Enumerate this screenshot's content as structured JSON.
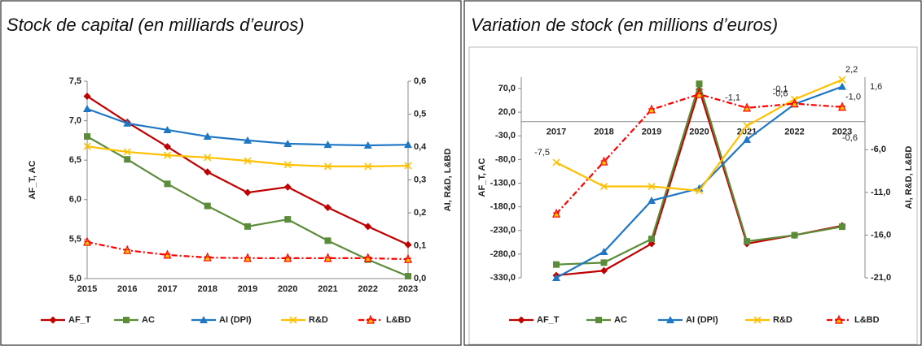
{
  "chart_data": [
    {
      "type": "line",
      "title": "Stock de capital (en milliards d’euros)",
      "y_label": "AF_T, AC",
      "y2_label": "AI, R&D, L&BD",
      "categories": [
        "2015",
        "2016",
        "2017",
        "2018",
        "2019",
        "2020",
        "2021",
        "2022",
        "2023"
      ],
      "ylim": [
        5,
        7.5
      ],
      "yticks": [
        {
          "value": 5,
          "label": "5,0"
        },
        {
          "value": 5.5,
          "label": "5,5"
        },
        {
          "value": 6,
          "label": "6,0"
        },
        {
          "value": 6.5,
          "label": "6,5"
        },
        {
          "value": 7,
          "label": "7,0"
        },
        {
          "value": 7.5,
          "label": "7,5"
        }
      ],
      "y2lim": [
        0,
        0.6
      ],
      "y2ticks": [
        {
          "value": 0,
          "label": "0,0"
        },
        {
          "value": 0.1,
          "label": "0,1"
        },
        {
          "value": 0.2,
          "label": "0,2"
        },
        {
          "value": 0.3,
          "label": "0,3"
        },
        {
          "value": 0.4,
          "label": "0,4"
        },
        {
          "value": 0.5,
          "label": "0,5"
        },
        {
          "value": 0.6,
          "label": "0,6"
        }
      ],
      "legend": "bottom",
      "series": [
        {
          "name": "AF_T",
          "color": "#c00000",
          "marker": "diamond",
          "values": [
            7.31,
            6.98,
            6.67,
            6.35,
            6.09,
            6.16,
            5.9,
            5.66,
            5.43
          ]
        },
        {
          "name": "AC",
          "color": "#5b8c3a",
          "marker": "square",
          "values": [
            6.8,
            6.51,
            6.2,
            5.92,
            5.66,
            5.75,
            5.48,
            5.24,
            5.03
          ]
        },
        {
          "name": "AI (DPI)",
          "color": "#1f77c4",
          "marker": "triangle",
          "axis": "y2",
          "values": [
            0.516,
            0.472,
            0.452,
            0.432,
            0.42,
            0.41,
            0.407,
            0.405,
            0.407
          ]
        },
        {
          "name": "R&D",
          "color": "#ffc000",
          "marker": "x",
          "axis": "y2",
          "values": [
            0.402,
            0.385,
            0.375,
            0.368,
            0.358,
            0.346,
            0.341,
            0.341,
            0.343
          ]
        },
        {
          "name": "L&BD",
          "color": "#ff0000",
          "marker": "star",
          "dash": true,
          "axis": "y2",
          "values": [
            0.111,
            0.086,
            0.072,
            0.064,
            0.062,
            0.062,
            0.062,
            0.062,
            0.059
          ]
        }
      ]
    },
    {
      "type": "line",
      "title": "Variation de stock (en millions d’euros)",
      "y_label": "AF_T, AC",
      "y2_label": "AI, R&D, L&BD",
      "categories": [
        "2017",
        "2018",
        "2019",
        "2020",
        "2021",
        "2022",
        "2023"
      ],
      "ylim": [
        -330,
        94
      ],
      "yticks": [
        {
          "value": -330,
          "label": "-330,0"
        },
        {
          "value": -280,
          "label": "-280,0"
        },
        {
          "value": -230,
          "label": "-230,0"
        },
        {
          "value": -180,
          "label": "-180,0"
        },
        {
          "value": -130,
          "label": "-130,0"
        },
        {
          "value": -80,
          "label": "-80,0"
        },
        {
          "value": -30,
          "label": "-30,0"
        },
        {
          "value": 20,
          "label": "20,0"
        },
        {
          "value": 70,
          "label": "70,0"
        }
      ],
      "y2lim": [
        -21,
        2.5
      ],
      "y2ticks": [
        {
          "value": -21,
          "label": "-21,0"
        },
        {
          "value": -16,
          "label": "-16,0"
        },
        {
          "value": -11,
          "label": "-11,0"
        },
        {
          "value": -6,
          "label": "-6,0"
        }
      ],
      "legend": "bottom",
      "annotations": [
        "1,6",
        "-0,6"
      ],
      "series": [
        {
          "name": "AF_T",
          "color": "#c00000",
          "marker": "diamond",
          "values": [
            -325,
            -315,
            -258,
            68,
            -258,
            -240,
            -220
          ]
        },
        {
          "name": "AC",
          "color": "#5b8c3a",
          "marker": "square",
          "values": [
            -302,
            -298,
            -248,
            80,
            -253,
            -240,
            -222
          ]
        },
        {
          "name": "AI (DPI)",
          "color": "#1f77c4",
          "marker": "triangle",
          "values": [
            -330,
            -275,
            -167,
            -141,
            -38,
            37,
            74
          ]
        },
        {
          "name": "R&D",
          "color": "#ffc000",
          "marker": "x",
          "axis": "y2",
          "values": [
            -7.5,
            -10.3,
            -10.3,
            -10.8,
            -3.2,
            -0.1,
            2.2
          ],
          "value_labels": [
            "-7,5",
            null,
            null,
            null,
            null,
            "-0,1",
            "2,2"
          ]
        },
        {
          "name": "L&BD",
          "color": "#ff0000",
          "marker": "star",
          "dash": true,
          "axis": "y2",
          "values": [
            -13.5,
            -7.4,
            -1.3,
            0.5,
            -1.1,
            -0.6,
            -1.0
          ],
          "value_labels": [
            null,
            null,
            null,
            null,
            "-1,1",
            "-0,6",
            "-1,0"
          ]
        }
      ]
    }
  ]
}
